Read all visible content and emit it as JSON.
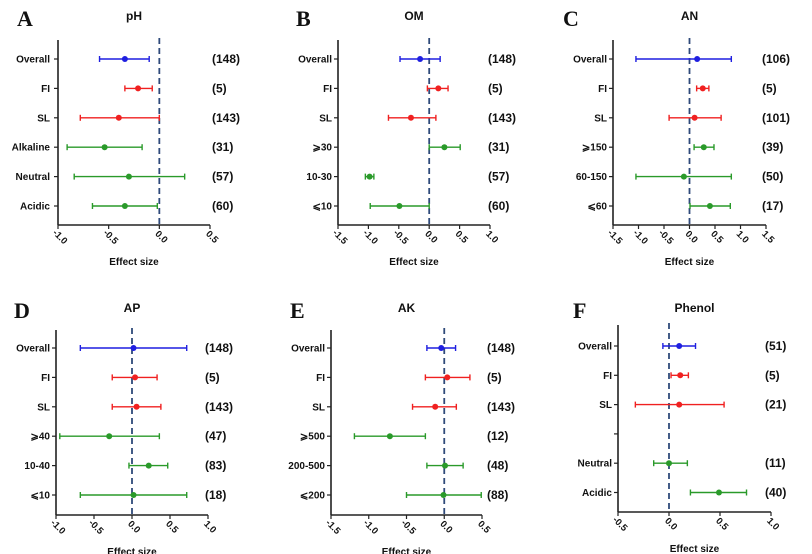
{
  "chart_data": [
    {
      "type": "forest",
      "panel": "A",
      "title": "pH",
      "xlabel": "Effect size",
      "xlim": [
        -1.0,
        0.5
      ],
      "xticks": [
        -1.0,
        -0.5,
        0.0,
        0.5
      ],
      "xtick_labels": [
        "-1.0",
        "-0.5",
        "0.0",
        "0.5"
      ],
      "reference_line": 0.0,
      "rows": [
        {
          "label": "Overall",
          "group": "overall",
          "mean": -0.34,
          "low": -0.59,
          "high": -0.1,
          "n": "(148)"
        },
        {
          "label": "FI",
          "group": "method",
          "mean": -0.21,
          "low": -0.34,
          "high": -0.07,
          "n": "(5)"
        },
        {
          "label": "SL",
          "group": "method",
          "mean": -0.4,
          "low": -0.78,
          "high": 0.0,
          "n": "(143)"
        },
        {
          "label": "Alkaline",
          "group": "sub",
          "mean": -0.54,
          "low": -0.91,
          "high": -0.17,
          "n": "(31)"
        },
        {
          "label": "Neutral",
          "group": "sub",
          "mean": -0.3,
          "low": -0.84,
          "high": 0.25,
          "n": "(57)"
        },
        {
          "label": "Acidic",
          "group": "sub",
          "mean": -0.34,
          "low": -0.66,
          "high": -0.02,
          "n": "(60)"
        }
      ]
    },
    {
      "type": "forest",
      "panel": "B",
      "title": "OM",
      "xlabel": "Effect size",
      "xlim": [
        -1.5,
        1.0
      ],
      "xticks": [
        -1.5,
        -1.0,
        -0.5,
        0.0,
        0.5,
        1.0
      ],
      "xtick_labels": [
        "-1.5",
        "-1.0",
        "-0.5",
        "0.0",
        "0.5",
        "1.0"
      ],
      "reference_line": 0.0,
      "rows": [
        {
          "label": "Overall",
          "group": "overall",
          "mean": -0.15,
          "low": -0.48,
          "high": 0.18,
          "n": "(148)"
        },
        {
          "label": "FI",
          "group": "method",
          "mean": 0.15,
          "low": -0.03,
          "high": 0.31,
          "n": "(5)"
        },
        {
          "label": "SL",
          "group": "method",
          "mean": -0.3,
          "low": -0.67,
          "high": 0.11,
          "n": "(143)"
        },
        {
          "label": "⩾30",
          "group": "sub",
          "mean": 0.25,
          "low": 0.0,
          "high": 0.51,
          "n": "(31)"
        },
        {
          "label": "10-30",
          "group": "sub",
          "mean": -0.98,
          "low": -1.05,
          "high": -0.91,
          "n": "(57)"
        },
        {
          "label": "⩽10",
          "group": "sub",
          "mean": -0.49,
          "low": -0.97,
          "high": 0.0,
          "n": "(60)"
        }
      ]
    },
    {
      "type": "forest",
      "panel": "C",
      "title": "AN",
      "xlabel": "Effect size",
      "xlim": [
        -1.5,
        1.5
      ],
      "xticks": [
        -1.5,
        -1.0,
        -0.5,
        0.0,
        0.5,
        1.0,
        1.5
      ],
      "xtick_labels": [
        "-1.5",
        "-1.0",
        "-0.5",
        "0.0",
        "0.5",
        "1.0",
        "1.5"
      ],
      "reference_line": 0.0,
      "rows": [
        {
          "label": "Overall",
          "group": "overall",
          "mean": 0.15,
          "low": -1.05,
          "high": 0.82,
          "n": "(106)"
        },
        {
          "label": "FI",
          "group": "method",
          "mean": 0.26,
          "low": 0.14,
          "high": 0.38,
          "n": "(5)"
        },
        {
          "label": "SL",
          "group": "method",
          "mean": 0.1,
          "low": -0.4,
          "high": 0.62,
          "n": "(101)"
        },
        {
          "label": "⩾150",
          "group": "sub",
          "mean": 0.28,
          "low": 0.09,
          "high": 0.48,
          "n": "(39)"
        },
        {
          "label": "60-150",
          "group": "sub",
          "mean": -0.11,
          "low": -1.05,
          "high": 0.82,
          "n": "(50)"
        },
        {
          "label": "⩽60",
          "group": "sub",
          "mean": 0.4,
          "low": 0.01,
          "high": 0.8,
          "n": "(17)"
        }
      ]
    },
    {
      "type": "forest",
      "panel": "D",
      "title": "AP",
      "xlabel": "Effect size",
      "xlim": [
        -1.0,
        1.0
      ],
      "xticks": [
        -1.0,
        -0.5,
        0.0,
        0.5,
        1.0
      ],
      "xtick_labels": [
        "-1.0",
        "-0.5",
        "0.0",
        "0.5",
        "1.0"
      ],
      "reference_line": 0.0,
      "rows": [
        {
          "label": "Overall",
          "group": "overall",
          "mean": 0.02,
          "low": -0.68,
          "high": 0.72,
          "n": "(148)"
        },
        {
          "label": "FI",
          "group": "method",
          "mean": 0.04,
          "low": -0.26,
          "high": 0.33,
          "n": "(5)"
        },
        {
          "label": "SL",
          "group": "method",
          "mean": 0.06,
          "low": -0.26,
          "high": 0.38,
          "n": "(143)"
        },
        {
          "label": "⩾40",
          "group": "sub",
          "mean": -0.3,
          "low": -0.95,
          "high": 0.36,
          "n": "(47)"
        },
        {
          "label": "10-40",
          "group": "sub",
          "mean": 0.22,
          "low": -0.04,
          "high": 0.47,
          "n": "(83)"
        },
        {
          "label": "⩽10",
          "group": "sub",
          "mean": 0.02,
          "low": -0.68,
          "high": 0.72,
          "n": "(18)"
        }
      ]
    },
    {
      "type": "forest",
      "panel": "E",
      "title": "AK",
      "xlabel": "Effect size",
      "xlim": [
        -1.5,
        0.5
      ],
      "xticks": [
        -1.5,
        -1.0,
        -0.5,
        0.0,
        0.5
      ],
      "xtick_labels": [
        "-1.5",
        "-1.0",
        "-0.5",
        "0.0",
        "0.5"
      ],
      "reference_line": 0.0,
      "rows": [
        {
          "label": "Overall",
          "group": "overall",
          "mean": -0.04,
          "low": -0.23,
          "high": 0.15,
          "n": "(148)"
        },
        {
          "label": "FI",
          "group": "method",
          "mean": 0.04,
          "low": -0.25,
          "high": 0.34,
          "n": "(5)"
        },
        {
          "label": "SL",
          "group": "method",
          "mean": -0.12,
          "low": -0.42,
          "high": 0.16,
          "n": "(143)"
        },
        {
          "label": "⩾500",
          "group": "sub",
          "mean": -0.72,
          "low": -1.19,
          "high": -0.25,
          "n": "(12)"
        },
        {
          "label": "200-500",
          "group": "sub",
          "mean": 0.01,
          "low": -0.23,
          "high": 0.25,
          "n": "(48)"
        },
        {
          "label": "⩽200",
          "group": "sub",
          "mean": -0.01,
          "low": -0.5,
          "high": 0.49,
          "n": "(88)"
        }
      ]
    },
    {
      "type": "forest",
      "panel": "F",
      "title": "Phenol",
      "xlabel": "Effect size",
      "xlim": [
        -0.5,
        1.0
      ],
      "xticks": [
        -0.5,
        0.0,
        0.5,
        1.0
      ],
      "xtick_labels": [
        "-0.5",
        "0.0",
        "0.5",
        "1.0"
      ],
      "reference_line": 0.0,
      "rows": [
        {
          "label": "Overall",
          "group": "overall",
          "mean": 0.1,
          "low": -0.06,
          "high": 0.26,
          "n": "(51)"
        },
        {
          "label": "FI",
          "group": "method",
          "mean": 0.11,
          "low": 0.02,
          "high": 0.19,
          "n": "(5)"
        },
        {
          "label": "SL",
          "group": "method",
          "mean": 0.1,
          "low": -0.33,
          "high": 0.54,
          "n": "(21)"
        },
        {
          "label": "",
          "group": "blank",
          "mean": null,
          "low": null,
          "high": null,
          "n": ""
        },
        {
          "label": "Neutral",
          "group": "sub",
          "mean": 0.0,
          "low": -0.15,
          "high": 0.18,
          "n": "(11)"
        },
        {
          "label": "Acidic",
          "group": "sub",
          "mean": 0.49,
          "low": 0.21,
          "high": 0.76,
          "n": "(40)"
        }
      ]
    }
  ],
  "colors": {
    "overall": "#1f1fe0",
    "method": "#f02020",
    "sub": "#2a9a2a",
    "reference_line": "#2f4a7a"
  }
}
